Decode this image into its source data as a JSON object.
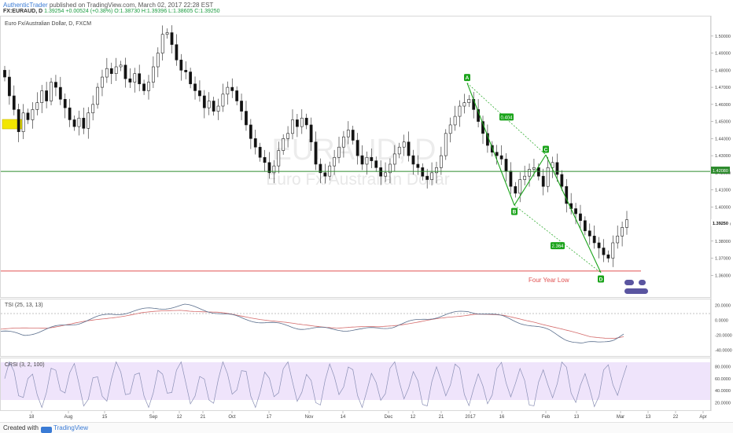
{
  "header": {
    "author": "AuthenticTrader",
    "published_text": "published on TradingView.com, March 02, 2017 22:28 EST",
    "symbol": "FX:EURAUD, D",
    "last": "1.39254",
    "change": "+0.00524 (+0.38%)",
    "ohlc": "O:1.38730 H:1.39396 L:1.38605 C:1.39250"
  },
  "main_pane": {
    "legend": "Euro Fx/Australian Dollar, D, FXCM",
    "watermark_symbol": "EURAUD, D",
    "watermark_name": "Euro Fx/Australian Dollar",
    "price_ticks": [
      "1.50000",
      "1.49000",
      "1.48000",
      "1.47000",
      "1.46000",
      "1.45000",
      "1.44000",
      "1.43000",
      "1.42000",
      "1.41000",
      "1.40000",
      "1.39000",
      "1.38000",
      "1.37000",
      "1.36000"
    ],
    "last_price_label": "1.39250",
    "support_label": "1.42080",
    "four_year_low_text": "Four Year Low",
    "pattern_points": [
      {
        "label": "A",
        "value": 1.4725
      },
      {
        "label": "B",
        "value": 1.401
      },
      {
        "label": "C",
        "value": 1.4305
      },
      {
        "label": "D",
        "value": 1.3615
      }
    ],
    "ratio_labels": [
      "0.404",
      "2.364"
    ]
  },
  "tsi_pane": {
    "legend": "TSI (25, 13, 13)",
    "ticks": [
      "20.0000",
      "0.0000",
      "-20.0000",
      "-40.0000"
    ]
  },
  "crsi_pane": {
    "legend": "CRSI (3, 2, 100)",
    "ticks": [
      "80.0000",
      "60.0000",
      "40.0000",
      "20.0000"
    ]
  },
  "time_axis": {
    "labels": [
      "18",
      "Aug",
      "15",
      "Sep",
      "12",
      "21",
      "Oct",
      "17",
      "Nov",
      "14",
      "Dec",
      "12",
      "21",
      "2017",
      "16",
      "Feb",
      "13",
      "Mar",
      "13",
      "22",
      "Apr"
    ]
  },
  "footer": {
    "created_with": "Created with",
    "brand": "TradingView"
  },
  "colors": {
    "support_line": "#2e8b2e",
    "low_line": "#e05050",
    "pattern": "#1aa31a",
    "tsi_line": "#5a6e8c",
    "tsi_signal": "#d46a6a",
    "crsi_line": "#8a8fb5",
    "crsi_band": "#efe4fb",
    "marker": "#f2e600"
  },
  "chart_data": {
    "type": "candlestick",
    "title": "Euro Fx/Australian Dollar, D, FXCM",
    "ylim": [
      1.356,
      1.505
    ],
    "horizontal_levels": [
      {
        "value": 1.4208,
        "label": "1.42080"
      },
      {
        "value": 1.3625,
        "label": "Four Year Low"
      }
    ],
    "last_close": 1.3925,
    "ohlc_seed": [
      1.476,
      1.465,
      1.457,
      1.444,
      1.455,
      1.451,
      1.457,
      1.461,
      1.468,
      1.462,
      1.473,
      1.47,
      1.463,
      1.458,
      1.451,
      1.447,
      1.452,
      1.446,
      1.455,
      1.46,
      1.47,
      1.476,
      1.481,
      1.478,
      1.482,
      1.483,
      1.475,
      1.473,
      1.478,
      1.472,
      1.468,
      1.473,
      1.482,
      1.49,
      1.501,
      1.502,
      1.495,
      1.486,
      1.48,
      1.479,
      1.472,
      1.468,
      1.465,
      1.458,
      1.462,
      1.456,
      1.459,
      1.466,
      1.47,
      1.468,
      1.462,
      1.456,
      1.448,
      1.44,
      1.435,
      1.429,
      1.426,
      1.42,
      1.424,
      1.433,
      1.44,
      1.443,
      1.451,
      1.447,
      1.452,
      1.448,
      1.438,
      1.425,
      1.42,
      1.418,
      1.424,
      1.429,
      1.435,
      1.441,
      1.445,
      1.439,
      1.43,
      1.425,
      1.429,
      1.427,
      1.423,
      1.418,
      1.42,
      1.425,
      1.431,
      1.435,
      1.438,
      1.43,
      1.425,
      1.423,
      1.418,
      1.416,
      1.42,
      1.423,
      1.43,
      1.443,
      1.448,
      1.453,
      1.459,
      1.461,
      1.463,
      1.457,
      1.45,
      1.443,
      1.436,
      1.432,
      1.43,
      1.428,
      1.421,
      1.412,
      1.408,
      1.416,
      1.418,
      1.422,
      1.423,
      1.418,
      1.412,
      1.423,
      1.426,
      1.419,
      1.412,
      1.402,
      1.399,
      1.396,
      1.392,
      1.386,
      1.383,
      1.379,
      1.376,
      1.372,
      1.37,
      1.379,
      1.383,
      1.388,
      1.3925
    ]
  }
}
